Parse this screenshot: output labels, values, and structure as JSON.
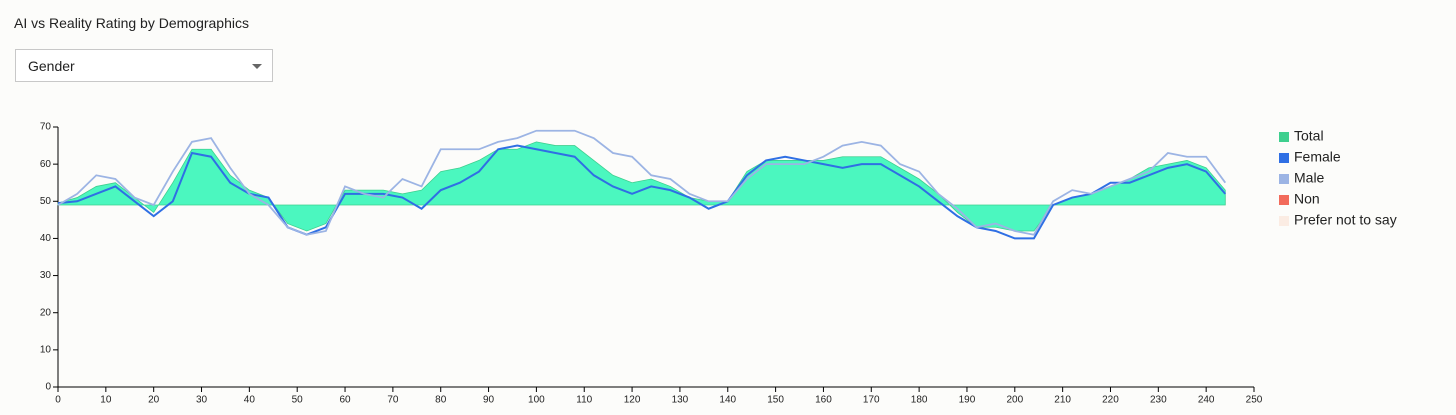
{
  "controls": {
    "dropdown": {
      "selected": "Gender"
    }
  },
  "chart_data": {
    "type": "area-line",
    "title": "AI vs Reality Rating by Demographics",
    "x": [
      0,
      4,
      8,
      12,
      16,
      20,
      24,
      28,
      32,
      36,
      40,
      44,
      48,
      52,
      56,
      60,
      64,
      68,
      72,
      76,
      80,
      84,
      88,
      92,
      96,
      100,
      104,
      108,
      112,
      116,
      120,
      124,
      128,
      132,
      136,
      140,
      144,
      148,
      152,
      156,
      160,
      164,
      168,
      172,
      176,
      180,
      184,
      188,
      192,
      196,
      200,
      204,
      208,
      212,
      216,
      220,
      224,
      228,
      232,
      236,
      240,
      244
    ],
    "area_baseline": 49,
    "series": [
      {
        "name": "Total",
        "color": "#3ecf8e",
        "fill": "#4bf7bf",
        "values": [
          49.5,
          51,
          54,
          55,
          51,
          47,
          55,
          64,
          64,
          57,
          53,
          51,
          44,
          42,
          44,
          53,
          53,
          53,
          52,
          53,
          58,
          59,
          61,
          64,
          64,
          66,
          65,
          65,
          61,
          57,
          55,
          56,
          54,
          51,
          50,
          50,
          58,
          61,
          61,
          61,
          61,
          62,
          62,
          62,
          59,
          56,
          52,
          47,
          43,
          43,
          42,
          42,
          49,
          51,
          52,
          54,
          56,
          59,
          60,
          61,
          59,
          53
        ]
      },
      {
        "name": "Female",
        "color": "#2f6fe4",
        "values": [
          49.5,
          50,
          52,
          54,
          50,
          46,
          50,
          63,
          62,
          55,
          52,
          51,
          43,
          41,
          43,
          52,
          52,
          52,
          51,
          48,
          53,
          55,
          58,
          64,
          65,
          64,
          63,
          62,
          57,
          54,
          52,
          54,
          53,
          51,
          48,
          50,
          57,
          61,
          62,
          61,
          60,
          59,
          60,
          60,
          57,
          54,
          50,
          46,
          43,
          42,
          40,
          40,
          49,
          51,
          52,
          55,
          55,
          57,
          59,
          60,
          58,
          52
        ]
      },
      {
        "name": "Male",
        "color": "#9cb4e4",
        "values": [
          49,
          52,
          57,
          56,
          51,
          49,
          58,
          66,
          67,
          59,
          52,
          49,
          43,
          41,
          42,
          54,
          52,
          51,
          56,
          54,
          64,
          64,
          64,
          66,
          67,
          69,
          69,
          69,
          67,
          63,
          62,
          57,
          56,
          52,
          50,
          50,
          56,
          60,
          60,
          60,
          62,
          65,
          66,
          65,
          60,
          58,
          52,
          48,
          43,
          44,
          42,
          41,
          50,
          53,
          52,
          54,
          56,
          58,
          63,
          62,
          62,
          55
        ]
      },
      {
        "name": "Non",
        "color": "#f26b5b",
        "values": [
          null,
          null,
          null,
          null,
          null,
          null,
          null,
          null,
          null,
          null,
          null,
          null,
          null,
          null,
          null,
          null,
          null,
          null,
          null,
          null,
          null,
          null,
          null,
          null,
          null,
          null,
          null,
          null,
          null,
          null,
          null,
          null,
          null,
          null,
          null,
          null,
          null,
          null,
          null,
          null,
          null,
          null,
          null,
          null,
          null,
          null,
          null,
          null,
          null,
          null,
          null,
          null,
          null,
          null,
          null,
          null,
          null,
          null,
          null,
          null,
          null,
          null
        ]
      },
      {
        "name": "Prefer not to say",
        "color": "#fbece3",
        "values": [
          null,
          null,
          null,
          null,
          null,
          null,
          null,
          null,
          null,
          null,
          null,
          null,
          null,
          null,
          null,
          null,
          null,
          null,
          null,
          null,
          null,
          null,
          null,
          null,
          null,
          null,
          null,
          null,
          null,
          null,
          null,
          null,
          null,
          null,
          null,
          null,
          null,
          null,
          null,
          null,
          null,
          null,
          null,
          null,
          null,
          null,
          null,
          null,
          null,
          null,
          null,
          null,
          null,
          null,
          null,
          null,
          null,
          null,
          null,
          null,
          null,
          null
        ]
      }
    ],
    "xlim": [
      0,
      250
    ],
    "xticks": [
      0,
      10,
      20,
      30,
      40,
      50,
      60,
      70,
      80,
      90,
      100,
      110,
      120,
      130,
      140,
      150,
      160,
      170,
      180,
      190,
      200,
      210,
      220,
      230,
      240,
      250
    ],
    "ylim": [
      0,
      70
    ],
    "yticks": [
      0,
      10,
      20,
      30,
      40,
      50,
      60,
      70
    ],
    "legend": "right"
  }
}
